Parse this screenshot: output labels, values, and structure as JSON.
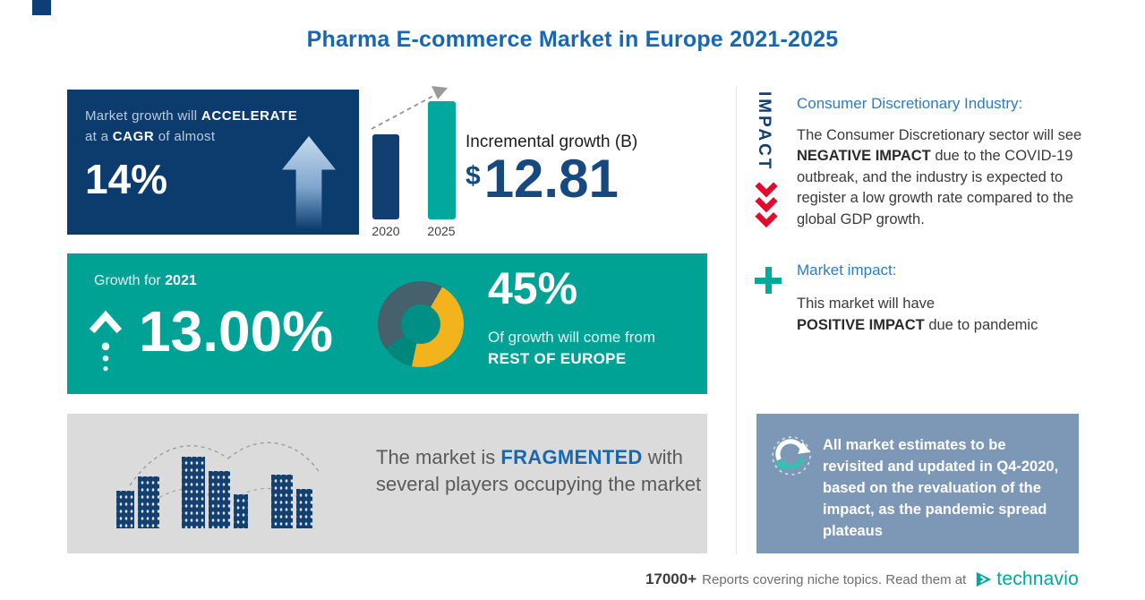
{
  "page": {
    "title": "Pharma E-commerce Market in Europe 2021-2025"
  },
  "colors": {
    "navy": "#0c3c6e",
    "title_blue": "#1767b2",
    "teal_box": "#00a296",
    "teal_bright": "#00a99c",
    "donut_yellow": "#f2b31d",
    "donut_slate": "#46606c",
    "donut_dark_teal": "#00877c",
    "red": "#e30b2d",
    "steel_blue": "#7d98b7",
    "light_gray": "#dbdbdb"
  },
  "cagr_box": {
    "line1_pre": "Market growth will",
    "line1_bold": "ACCELERATE",
    "line2_pre": "at a",
    "line2_bold": "CAGR",
    "line2_post": "of almost",
    "value": "14%"
  },
  "incremental": {
    "currency": "$",
    "value": "12.81"
  },
  "growth_2021": {
    "label_pre": "Growth for",
    "label_year": "2021",
    "value": "13.00%",
    "share_pct": "45%",
    "share_line1": "Of growth will come from",
    "share_line2": "REST OF EUROPE"
  },
  "fragmented": {
    "pre": "The market is",
    "bold": "FRAGMENTED",
    "post": "with several players occupying the market"
  },
  "impact": {
    "vertical_label": "IMPACT",
    "industry_title": "Consumer Discretionary Industry:",
    "industry_pre": "The Consumer Discretionary sector will see",
    "industry_bold": "NEGATIVE IMPACT",
    "industry_post": "due to the COVID-19 outbreak, and the industry is expected to register a low growth rate compared to the global GDP growth.",
    "market_title": "Market impact:",
    "market_pre": "This market will have",
    "market_bold": "POSITIVE IMPACT",
    "market_post": "due to pandemic"
  },
  "estimates_note": "All market estimates to be revisited and updated in Q4-2020, based on the revaluation of the impact, as the pandemic spread plateaus",
  "footer": {
    "count": "17000+",
    "text": "Reports covering niche topics. Read them at",
    "brand": "technavio"
  },
  "chart_data": [
    {
      "type": "bar",
      "title": "Incremental growth (B)",
      "categories": [
        "2020",
        "2025"
      ],
      "values": [
        1,
        1.39
      ],
      "values_note": "No numeric axis shown; bar heights are relative. Incremental growth labeled as $12.81B.",
      "incremental_growth_usd_b": 12.81,
      "bar_colors": [
        "#123f6f",
        "#00a99c"
      ]
    },
    {
      "type": "pie",
      "title": "Share of growth by region",
      "start_angle": 30,
      "slices": [
        {
          "label": "REST OF EUROPE",
          "value": 45,
          "color": "#f2b31d"
        },
        {
          "label": "unlabeled-1",
          "value": 12,
          "color": "#00877c"
        },
        {
          "label": "unlabeled-2",
          "value": 43,
          "color": "#46606c"
        }
      ],
      "callout": "45% Of growth will come from REST OF EUROPE"
    }
  ]
}
